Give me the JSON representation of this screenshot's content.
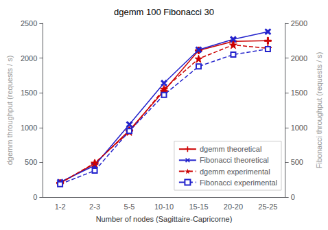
{
  "chart_data": {
    "type": "line",
    "title": "dgemm 100 Fibonacci 30",
    "xlabel": "Number of nodes (Sagittaire-Capricorne)",
    "ylabel": "dgemm throughput (requests / s)",
    "y2label": "Fibonacci throughput (requests / s)",
    "categories": [
      "1-2",
      "2-3",
      "5-5",
      "10-10",
      "15-15",
      "20-20",
      "25-25"
    ],
    "series": [
      {
        "name": "dgemm theoretical",
        "color": "#cc0000",
        "marker": "plus",
        "line_style": "solid",
        "values": [
          200,
          480,
          960,
          1530,
          2110,
          2240,
          2250
        ]
      },
      {
        "name": "Fibonacci theoretical",
        "color": "#2222cc",
        "marker": "x",
        "line_style": "solid",
        "values": [
          215,
          455,
          1045,
          1640,
          2120,
          2270,
          2380
        ]
      },
      {
        "name": "dgemm experimental",
        "color": "#cc0000",
        "marker": "star",
        "line_style": "dashed",
        "values": [
          200,
          490,
          940,
          1555,
          1990,
          2190,
          2140
        ]
      },
      {
        "name": "Fibonacci experimental",
        "color": "#2222cc",
        "marker": "square",
        "line_style": "dashed",
        "values": [
          185,
          380,
          950,
          1470,
          1880,
          2050,
          2130
        ]
      }
    ],
    "ylim": [
      0,
      2500
    ],
    "yticks": [
      0,
      500,
      1000,
      1500,
      2000,
      2500
    ],
    "y2lim": [
      0,
      2500
    ],
    "y2ticks": [
      0,
      500,
      1000,
      1500,
      2000,
      2500
    ],
    "grid": false,
    "legend": "lower right"
  }
}
